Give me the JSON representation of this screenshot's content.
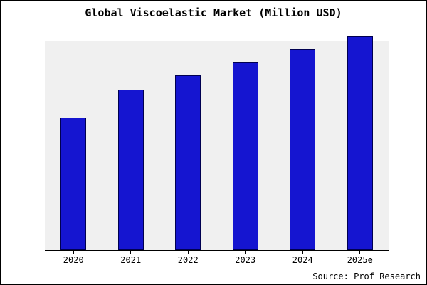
{
  "chart_data": {
    "type": "bar",
    "title": "Global Viscoelastic Market (Million USD)",
    "categories": [
      "2020",
      "2021",
      "2022",
      "2023",
      "2024",
      "2025e"
    ],
    "values": [
      62,
      75,
      82,
      88,
      94,
      100
    ],
    "xlabel": "",
    "ylabel": "",
    "ylim": [
      0,
      100
    ],
    "grid": false,
    "legend": false,
    "y_axis_labels_visible": false
  },
  "footer": {
    "source": "Source: Prof Research"
  },
  "colors": {
    "bar_fill": "#1515d0",
    "bar_border": "#000050",
    "plot_bg": "#f0f0f0",
    "frame_border": "#000000"
  }
}
